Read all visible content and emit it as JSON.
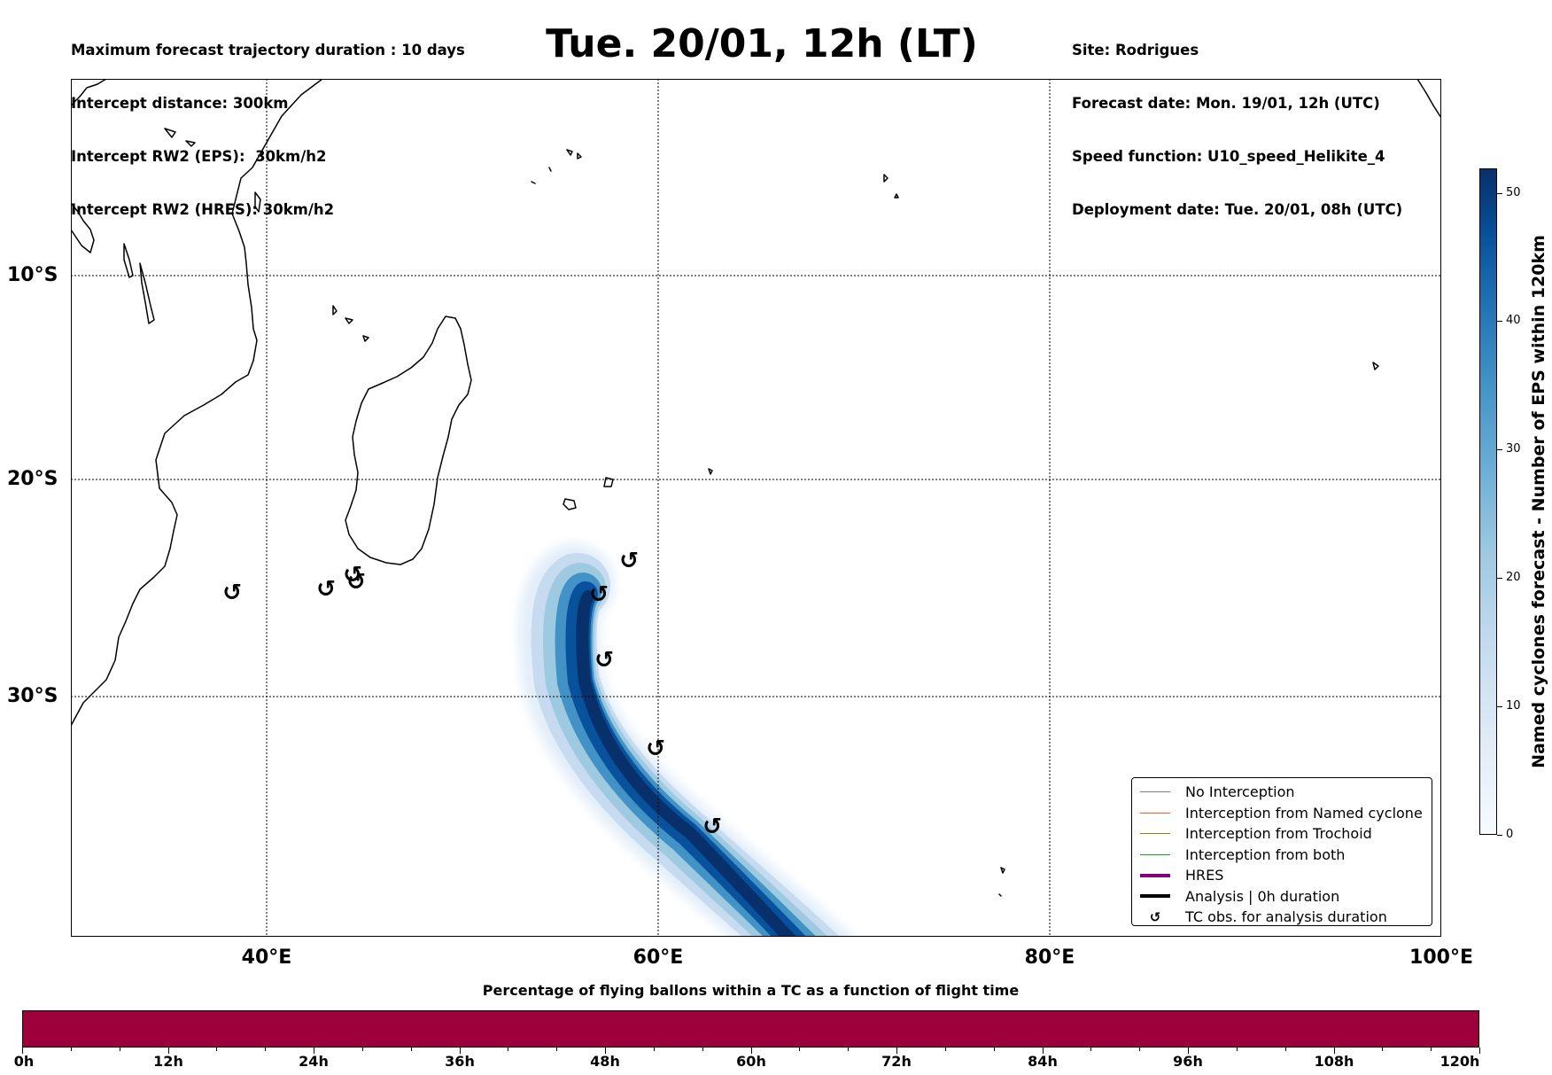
{
  "header": {
    "left_lines": [
      "Maximum forecast trajectory duration : 10 days",
      "Intercept distance: 300km",
      "Intercept RW2 (EPS):  30km/h2",
      "Intercept RW2 (HRES): 30km/h2"
    ],
    "title": "Tue. 20/01, 12h (LT)",
    "right_lines": [
      "Site: Rodrigues",
      "Forecast date: Mon. 19/01, 12h (UTC)",
      "Speed function: U10_speed_Helikite_4",
      "Deployment date: Tue. 20/01, 08h (UTC)"
    ]
  },
  "map": {
    "lon_labels": [
      "40°E",
      "60°E",
      "80°E",
      "100°E"
    ],
    "lat_labels": [
      "10°S",
      "20°S",
      "30°S"
    ],
    "tc_symbol": "↺"
  },
  "density_colorbar": {
    "label": "Named cyclones forecast - Number of EPS within 120km",
    "ticks": [
      "0",
      "10",
      "20",
      "30",
      "40",
      "50"
    ],
    "colors": {
      "low": "#f7fbff",
      "high": "#08306b"
    }
  },
  "legend": {
    "items": [
      {
        "label": "No Interception",
        "color": "#808080",
        "style": "thin"
      },
      {
        "label": "Interception from Named cyclone",
        "color": "#ff5a1e",
        "style": "thin"
      },
      {
        "label": "Interception from Trochoid",
        "color": "#8b8b00",
        "style": "thin"
      },
      {
        "label": "Interception from both",
        "color": "#1aa31a",
        "style": "thin"
      },
      {
        "label": "HRES",
        "color": "#800080",
        "style": "thick"
      },
      {
        "label": "Analysis | 0h duration",
        "color": "#000000",
        "style": "thick"
      },
      {
        "label": "TC obs. for analysis duration",
        "color": "#000000",
        "style": "symbol"
      }
    ]
  },
  "flight_time_bar": {
    "title": "Percentage of flying ballons within a TC as a function of flight time",
    "tick_labels": [
      "0h",
      "12h",
      "24h",
      "36h",
      "48h",
      "60h",
      "72h",
      "84h",
      "96h",
      "108h",
      "120h"
    ],
    "color": "#9e003b"
  }
}
